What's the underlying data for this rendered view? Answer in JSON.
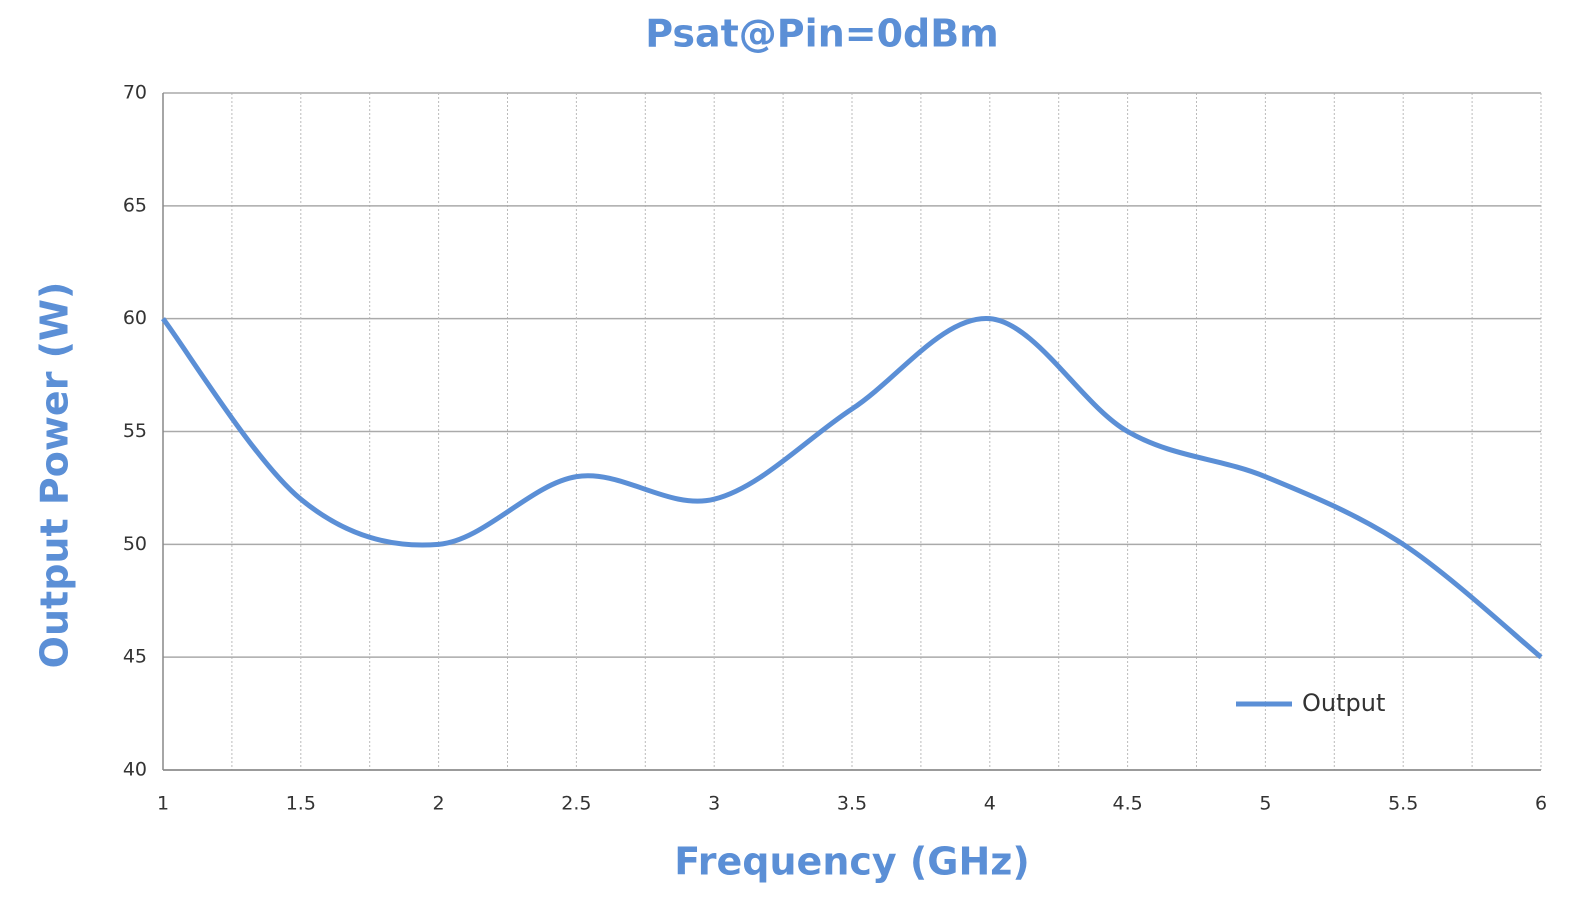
{
  "chart_data": {
    "type": "line",
    "title": "Psat@Pin=0dBm",
    "x_label": "Frequency (GHz)",
    "y_label": "Output Power (W)",
    "x": [
      1,
      1.5,
      2,
      2.5,
      3,
      3.5,
      4,
      4.5,
      5,
      5.5,
      6
    ],
    "series": [
      {
        "name": "Output",
        "color": "#5b8fd6",
        "values": [
          60,
          52,
          50,
          53,
          52,
          56,
          60,
          55,
          53,
          50,
          45
        ]
      }
    ],
    "xlim": [
      1,
      6
    ],
    "xticks": [
      1,
      1.5,
      2,
      2.5,
      3,
      3.5,
      4,
      4.5,
      5,
      5.5,
      6
    ],
    "ylim": [
      40,
      70
    ],
    "yticks": [
      40,
      45,
      50,
      55,
      60,
      65,
      70
    ],
    "grid": true,
    "smooth": true,
    "legend": "lower right"
  }
}
